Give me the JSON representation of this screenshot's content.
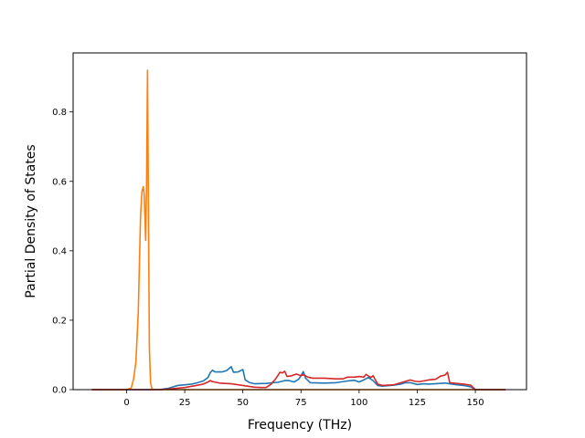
{
  "chart_data": {
    "type": "line",
    "title": "",
    "xlabel": "Frequency (THz)",
    "ylabel": "Partial Density of States",
    "xlim": [
      -23,
      172
    ],
    "ylim": [
      0,
      0.97
    ],
    "xticks": [
      0,
      25,
      50,
      75,
      100,
      125,
      150
    ],
    "yticks": [
      0.0,
      0.2,
      0.4,
      0.6,
      0.8
    ],
    "ytick_labels": [
      "0.0",
      "0.2",
      "0.4",
      "0.6",
      "0.8"
    ],
    "grid": false,
    "series": [
      {
        "color": "#1f77b4",
        "points": [
          [
            -15,
            0
          ],
          [
            10,
            0
          ],
          [
            15,
            0.001
          ],
          [
            18,
            0.004
          ],
          [
            20,
            0.008
          ],
          [
            22,
            0.012
          ],
          [
            25,
            0.014
          ],
          [
            28,
            0.016
          ],
          [
            30,
            0.019
          ],
          [
            33,
            0.025
          ],
          [
            35,
            0.035
          ],
          [
            36,
            0.049
          ],
          [
            37,
            0.056
          ],
          [
            38,
            0.051
          ],
          [
            41,
            0.051
          ],
          [
            43,
            0.055
          ],
          [
            45,
            0.066
          ],
          [
            46,
            0.05
          ],
          [
            48,
            0.051
          ],
          [
            50,
            0.058
          ],
          [
            51,
            0.028
          ],
          [
            53,
            0.02
          ],
          [
            55,
            0.017
          ],
          [
            60,
            0.018
          ],
          [
            63,
            0.02
          ],
          [
            65,
            0.021
          ],
          [
            68,
            0.026
          ],
          [
            70,
            0.026
          ],
          [
            72,
            0.022
          ],
          [
            74,
            0.03
          ],
          [
            75,
            0.04
          ],
          [
            76,
            0.052
          ],
          [
            77,
            0.033
          ],
          [
            79,
            0.02
          ],
          [
            85,
            0.019
          ],
          [
            90,
            0.02
          ],
          [
            92,
            0.022
          ],
          [
            95,
            0.025
          ],
          [
            98,
            0.027
          ],
          [
            100,
            0.022
          ],
          [
            102,
            0.028
          ],
          [
            104,
            0.035
          ],
          [
            106,
            0.026
          ],
          [
            108,
            0.012
          ],
          [
            110,
            0.01
          ],
          [
            115,
            0.013
          ],
          [
            118,
            0.016
          ],
          [
            120,
            0.02
          ],
          [
            122,
            0.02
          ],
          [
            125,
            0.015
          ],
          [
            128,
            0.017
          ],
          [
            130,
            0.016
          ],
          [
            135,
            0.018
          ],
          [
            137,
            0.019
          ],
          [
            139,
            0.017
          ],
          [
            142,
            0.014
          ],
          [
            145,
            0.012
          ],
          [
            148,
            0.008
          ],
          [
            150,
            0
          ],
          [
            163,
            0
          ]
        ]
      },
      {
        "color": "#ff7f0e",
        "points": [
          [
            -15,
            0
          ],
          [
            0,
            0
          ],
          [
            2,
            0.005
          ],
          [
            3,
            0.03
          ],
          [
            4,
            0.08
          ],
          [
            5,
            0.22
          ],
          [
            6,
            0.5
          ],
          [
            6.6,
            0.57
          ],
          [
            7.2,
            0.585
          ],
          [
            7.6,
            0.56
          ],
          [
            8.2,
            0.43
          ],
          [
            8.6,
            0.6
          ],
          [
            9,
            0.92
          ],
          [
            9.4,
            0.5
          ],
          [
            9.8,
            0.12
          ],
          [
            10.3,
            0.02
          ],
          [
            11,
            0
          ],
          [
            163,
            0
          ]
        ]
      },
      {
        "color": "#d62728",
        "points": [
          [
            -15,
            0
          ],
          [
            15,
            0
          ],
          [
            20,
            0.003
          ],
          [
            25,
            0.006
          ],
          [
            30,
            0.012
          ],
          [
            33,
            0.016
          ],
          [
            35,
            0.022
          ],
          [
            36,
            0.026
          ],
          [
            37,
            0.023
          ],
          [
            40,
            0.019
          ],
          [
            45,
            0.017
          ],
          [
            50,
            0.012
          ],
          [
            55,
            0.007
          ],
          [
            58,
            0.006
          ],
          [
            60,
            0.006
          ],
          [
            62,
            0.015
          ],
          [
            64,
            0.03
          ],
          [
            66,
            0.05
          ],
          [
            67,
            0.048
          ],
          [
            68,
            0.053
          ],
          [
            69,
            0.038
          ],
          [
            71,
            0.04
          ],
          [
            73,
            0.045
          ],
          [
            75,
            0.04
          ],
          [
            76,
            0.043
          ],
          [
            78,
            0.036
          ],
          [
            80,
            0.033
          ],
          [
            85,
            0.033
          ],
          [
            90,
            0.031
          ],
          [
            93,
            0.031
          ],
          [
            95,
            0.036
          ],
          [
            98,
            0.036
          ],
          [
            100,
            0.038
          ],
          [
            102,
            0.036
          ],
          [
            103,
            0.044
          ],
          [
            105,
            0.035
          ],
          [
            106,
            0.04
          ],
          [
            108,
            0.016
          ],
          [
            110,
            0.012
          ],
          [
            115,
            0.014
          ],
          [
            118,
            0.02
          ],
          [
            120,
            0.024
          ],
          [
            122,
            0.028
          ],
          [
            124,
            0.024
          ],
          [
            126,
            0.023
          ],
          [
            130,
            0.028
          ],
          [
            133,
            0.03
          ],
          [
            135,
            0.039
          ],
          [
            137,
            0.042
          ],
          [
            138,
            0.05
          ],
          [
            139,
            0.02
          ],
          [
            142,
            0.018
          ],
          [
            145,
            0.016
          ],
          [
            148,
            0.013
          ],
          [
            150,
            0
          ],
          [
            163,
            0
          ]
        ]
      }
    ]
  }
}
